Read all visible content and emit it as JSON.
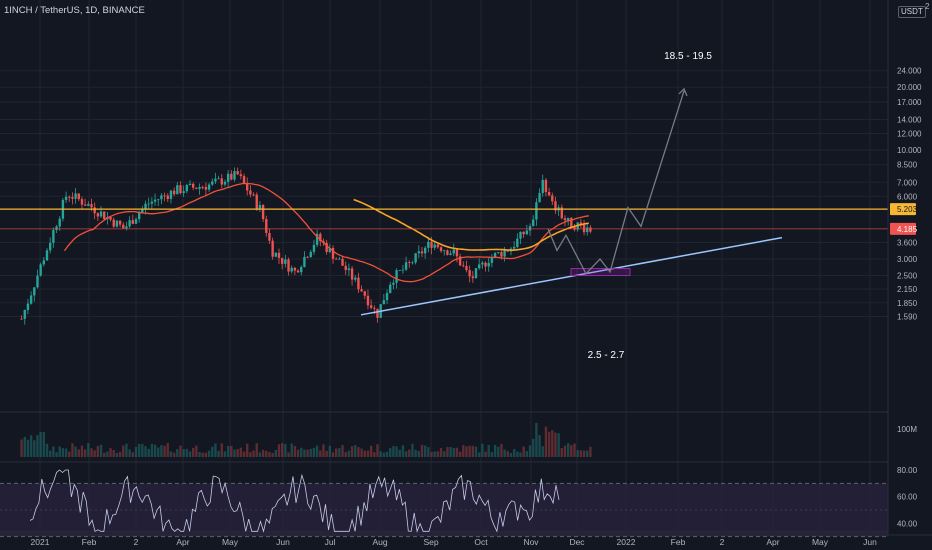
{
  "header": {
    "symbol": "1INCH / TetherUS, 1D, BINANCE"
  },
  "price_axis": {
    "unit_badge": "USDT",
    "top_fragment": "2"
  },
  "colors": {
    "background": "#131722",
    "grid": "#1f2430",
    "axis_text": "#b2b5be",
    "candle_up": "#26a69a",
    "candle_down": "#ef5350",
    "ma_fast": "#f0513b",
    "ma_slow": "#f5a623",
    "resistance": "#f7b731",
    "current_price": "#f05350",
    "support": "#9ec5ff",
    "projection": "#787b86",
    "target_zone": "#9c27b0",
    "rsi_line": "#c5cae9",
    "rsi_band": "#2a2340"
  },
  "chart_data": {
    "type": "candlestick",
    "price_scale": "log",
    "y_ticks": [
      "24.000",
      "20.000",
      "17.000",
      "14.000",
      "12.000",
      "10.000",
      "8.500",
      "7.000",
      "6.000",
      "5.203",
      "4.185",
      "3.600",
      "3.000",
      "2.500",
      "2.150",
      "1.850",
      "1.590"
    ],
    "x_ticks": [
      "2021",
      "Feb",
      "2",
      "Apr",
      "May",
      "Jun",
      "Jul",
      "Aug",
      "Sep",
      "Oct",
      "Nov",
      "Dec",
      "2022",
      "Feb",
      "2",
      "Apr",
      "May",
      "Jun"
    ],
    "price_labels": [
      {
        "id": "resistance",
        "label": "5.203",
        "value": 5.203
      },
      {
        "id": "current",
        "label": "4.185",
        "value": 4.185
      }
    ],
    "annotations": [
      {
        "text": "18.5 - 19.5",
        "x": "2022-01",
        "y": 21
      },
      {
        "text": "2.5 - 2.7",
        "x": "2021-12",
        "y": 2.25
      }
    ],
    "key_points": [
      {
        "date": "2021-01-01",
        "price": 1.55
      },
      {
        "date": "2021-05-01",
        "price": 7.6
      },
      {
        "date": "2021-07-20",
        "price": 1.62
      },
      {
        "date": "2021-11-01",
        "price": 7.5
      },
      {
        "date": "2021-11-18",
        "price": 4.185
      }
    ],
    "volume": {
      "axis_label": "100M"
    },
    "rsi": {
      "ticks": [
        "80.00",
        "60.00",
        "40.00"
      ],
      "upper": 70,
      "lower": 30
    }
  }
}
